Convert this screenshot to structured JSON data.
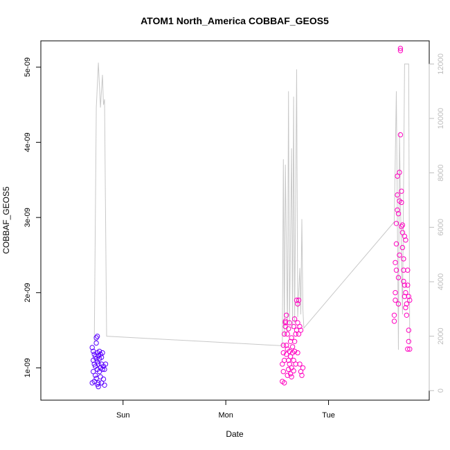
{
  "chart_data": {
    "type": "scatter",
    "title": "ATOM1 North_America COBBAF_GEOS5",
    "xlabel": "Date",
    "ylabel": "COBBAF_GEOS5",
    "x_ticks": [
      {
        "label": "Sun",
        "day": 1.0
      },
      {
        "label": "Mon",
        "day": 2.0
      },
      {
        "label": "Tue",
        "day": 3.0
      }
    ],
    "xlim_days": [
      0.2,
      3.98
    ],
    "ylim": [
      5.7e-10,
      5.35e-09
    ],
    "y_ticks": [
      {
        "label": "1e-09",
        "value": 1e-09
      },
      {
        "label": "2e-09",
        "value": 2e-09
      },
      {
        "label": "3e-09",
        "value": 3e-09
      },
      {
        "label": "4e-09",
        "value": 4e-09
      },
      {
        "label": "5e-09",
        "value": 5e-09
      }
    ],
    "y2lim": [
      -350,
      12850
    ],
    "y2_ticks": [
      {
        "label": "0",
        "value": 0
      },
      {
        "label": "2000",
        "value": 2000
      },
      {
        "label": "4000",
        "value": 4000
      },
      {
        "label": "6000",
        "value": 6000
      },
      {
        "label": "8000",
        "value": 8000
      },
      {
        "label": "10000",
        "value": 10000
      },
      {
        "label": "12000",
        "value": 12000
      }
    ],
    "colors": {
      "early": "#5a00ff",
      "late": "#ff00c0",
      "secondary_line": "#c8c8c8",
      "secondary_axis": "#bdbdbd"
    },
    "secondary_series": {
      "description": "altitude-like trace on right axis",
      "points": [
        [
          0.72,
          1800
        ],
        [
          0.74,
          10400
        ],
        [
          0.76,
          12050
        ],
        [
          0.78,
          10400
        ],
        [
          0.8,
          11600
        ],
        [
          0.81,
          10500
        ],
        [
          0.82,
          10700
        ],
        [
          0.84,
          2000
        ],
        [
          2.55,
          1650
        ],
        [
          2.56,
          8500
        ],
        [
          2.57,
          2000
        ],
        [
          2.58,
          8300
        ],
        [
          2.6,
          2200
        ],
        [
          2.61,
          11000
        ],
        [
          2.62,
          2400
        ],
        [
          2.64,
          8900
        ],
        [
          2.65,
          2300
        ],
        [
          2.66,
          10800
        ],
        [
          2.67,
          2500
        ],
        [
          2.69,
          11800
        ],
        [
          2.7,
          2700
        ],
        [
          2.72,
          4500
        ],
        [
          2.73,
          2800
        ],
        [
          2.74,
          6300
        ],
        [
          2.75,
          3000
        ],
        [
          2.76,
          2300
        ],
        [
          3.64,
          6200
        ],
        [
          3.66,
          11000
        ],
        [
          3.68,
          1500
        ],
        [
          3.69,
          9500
        ],
        [
          3.7,
          7000
        ],
        [
          3.72,
          2800
        ],
        [
          3.74,
          12000
        ],
        [
          3.78,
          12000
        ],
        [
          3.79,
          1700
        ]
      ]
    },
    "series": [
      {
        "color_key": "early",
        "points": [
          [
            0.7,
            1.27e-09
          ],
          [
            0.7,
            8e-10
          ],
          [
            0.71,
            1.22e-09
          ],
          [
            0.71,
            9.5e-10
          ],
          [
            0.71,
            1.1e-09
          ],
          [
            0.72,
            1.05e-09
          ],
          [
            0.72,
            8.2e-10
          ],
          [
            0.72,
            1.18e-09
          ],
          [
            0.73,
            1.02e-09
          ],
          [
            0.73,
            9e-10
          ],
          [
            0.73,
            1.15e-09
          ],
          [
            0.74,
            1.33e-09
          ],
          [
            0.74,
            1.4e-09
          ],
          [
            0.74,
            1.12e-09
          ],
          [
            0.74,
            8.6e-10
          ],
          [
            0.75,
            1.08e-09
          ],
          [
            0.75,
            9.8e-10
          ],
          [
            0.75,
            7.8e-10
          ],
          [
            0.75,
            1.42e-09
          ],
          [
            0.75,
            1.2e-09
          ],
          [
            0.76,
            1.16e-09
          ],
          [
            0.76,
            7.5e-10
          ],
          [
            0.76,
            8e-10
          ],
          [
            0.76,
            1.05e-09
          ],
          [
            0.77,
            1.12e-09
          ],
          [
            0.77,
            1.22e-09
          ],
          [
            0.77,
            9.5e-10
          ],
          [
            0.78,
            1e-09
          ],
          [
            0.78,
            8.8e-10
          ],
          [
            0.78,
            1.18e-09
          ],
          [
            0.79,
            1.05e-09
          ],
          [
            0.79,
            8e-10
          ],
          [
            0.79,
            1.14e-09
          ],
          [
            0.8,
            9.8e-10
          ],
          [
            0.8,
            1.2e-09
          ],
          [
            0.81,
            1.02e-09
          ],
          [
            0.81,
            8.5e-10
          ],
          [
            0.82,
            7.7e-10
          ],
          [
            0.82,
            9.8e-10
          ],
          [
            0.83,
            1.05e-09
          ]
        ]
      },
      {
        "color_key": "late",
        "points": [
          [
            2.55,
            8.2e-10
          ],
          [
            2.55,
            1.05e-09
          ],
          [
            2.56,
            1.3e-09
          ],
          [
            2.56,
            1.2e-09
          ],
          [
            2.56,
            9.5e-10
          ],
          [
            2.57,
            8e-10
          ],
          [
            2.57,
            1.45e-09
          ],
          [
            2.57,
            1.1e-09
          ],
          [
            2.58,
            1.55e-09
          ],
          [
            2.58,
            1.6e-09
          ],
          [
            2.58,
            1.62e-09
          ],
          [
            2.59,
            1.7e-09
          ],
          [
            2.59,
            1.3e-09
          ],
          [
            2.59,
            1.18e-09
          ],
          [
            2.6,
            1.45e-09
          ],
          [
            2.6,
            1.25e-09
          ],
          [
            2.6,
            9e-10
          ],
          [
            2.61,
            9.8e-10
          ],
          [
            2.61,
            1.1e-09
          ],
          [
            2.61,
            1.52e-09
          ],
          [
            2.62,
            1.6e-09
          ],
          [
            2.62,
            1.05e-09
          ],
          [
            2.62,
            1.22e-09
          ],
          [
            2.63,
            1.15e-09
          ],
          [
            2.63,
            9.2e-10
          ],
          [
            2.63,
            1.35e-09
          ],
          [
            2.64,
            1e-09
          ],
          [
            2.64,
            1.4e-09
          ],
          [
            2.64,
            8.8e-10
          ],
          [
            2.65,
            1.2e-09
          ],
          [
            2.65,
            1.28e-09
          ],
          [
            2.66,
            1.1e-09
          ],
          [
            2.66,
            1.55e-09
          ],
          [
            2.66,
            9.6e-10
          ],
          [
            2.67,
            1.35e-09
          ],
          [
            2.67,
            1.22e-09
          ],
          [
            2.67,
            1.65e-09
          ],
          [
            2.68,
            1.45e-09
          ],
          [
            2.68,
            1.05e-09
          ],
          [
            2.69,
            1.5e-09
          ],
          [
            2.69,
            1.9e-09
          ],
          [
            2.7,
            1.85e-09
          ],
          [
            2.7,
            1.2e-09
          ],
          [
            2.7,
            1.6e-09
          ],
          [
            2.71,
            1.9e-09
          ],
          [
            2.71,
            1.45e-09
          ],
          [
            2.72,
            1.05e-09
          ],
          [
            2.72,
            1.55e-09
          ],
          [
            2.73,
            1.5e-09
          ],
          [
            2.73,
            9.5e-10
          ],
          [
            2.74,
            9e-10
          ],
          [
            2.75,
            1e-09
          ],
          [
            3.64,
            1.62e-09
          ],
          [
            3.64,
            1.7e-09
          ],
          [
            3.65,
            2.4e-09
          ],
          [
            3.65,
            2e-09
          ],
          [
            3.65,
            1.9e-09
          ],
          [
            3.66,
            2.3e-09
          ],
          [
            3.66,
            2.92e-09
          ],
          [
            3.66,
            2.65e-09
          ],
          [
            3.67,
            3.1e-09
          ],
          [
            3.67,
            3.3e-09
          ],
          [
            3.67,
            3.55e-09
          ],
          [
            3.68,
            3.05e-09
          ],
          [
            3.68,
            2.2e-09
          ],
          [
            3.68,
            1.85e-09
          ],
          [
            3.69,
            3.6e-09
          ],
          [
            3.69,
            3.22e-09
          ],
          [
            3.69,
            2.5e-09
          ],
          [
            3.7,
            4.1e-09
          ],
          [
            3.7,
            5.22e-09
          ],
          [
            3.7,
            5.25e-09
          ],
          [
            3.71,
            3.35e-09
          ],
          [
            3.71,
            3.2e-09
          ],
          [
            3.71,
            2.88e-09
          ],
          [
            3.72,
            2.8e-09
          ],
          [
            3.72,
            2.9e-09
          ],
          [
            3.72,
            2.6e-09
          ],
          [
            3.73,
            2.45e-09
          ],
          [
            3.73,
            2.3e-09
          ],
          [
            3.73,
            2.15e-09
          ],
          [
            3.74,
            2.1e-09
          ],
          [
            3.74,
            1.95e-09
          ],
          [
            3.74,
            2.75e-09
          ],
          [
            3.75,
            1.8e-09
          ],
          [
            3.75,
            2.7e-09
          ],
          [
            3.75,
            2e-09
          ],
          [
            3.76,
            1.85e-09
          ],
          [
            3.76,
            1.7e-09
          ],
          [
            3.77,
            2.3e-09
          ],
          [
            3.77,
            2.1e-09
          ],
          [
            3.77,
            1.25e-09
          ],
          [
            3.78,
            1.95e-09
          ],
          [
            3.78,
            1.5e-09
          ],
          [
            3.78,
            1.35e-09
          ],
          [
            3.79,
            1.25e-09
          ],
          [
            3.79,
            1.9e-09
          ]
        ]
      }
    ]
  }
}
